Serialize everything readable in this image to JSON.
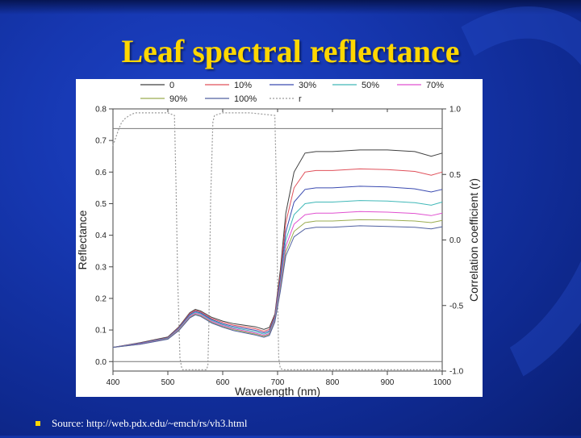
{
  "slide": {
    "title": "Leaf spectral reflectance",
    "source": "Source: http://web.pdx.edu/~emch/rs/vh3.html",
    "colors": {
      "title": "#ffd700",
      "background": "#1637b0",
      "bullet": "#ffd700"
    }
  },
  "chart_data": {
    "type": "line",
    "title": "",
    "xlabel": "Wavelength (nm)",
    "ylabel": "Reflectance",
    "y2label": "Correlation coefficient (r)",
    "xlim": [
      400,
      1000
    ],
    "ylim": [
      -0.03,
      0.8
    ],
    "y2lim": [
      -1.0,
      1.0
    ],
    "xticks": [
      400,
      500,
      600,
      700,
      800,
      900,
      1000
    ],
    "xtick_labels": [
      "400",
      "500",
      "600",
      "700",
      "800",
      "900",
      "1000"
    ],
    "yticks": [
      0.0,
      0.1,
      0.2,
      0.3,
      0.4,
      0.5,
      0.6,
      0.7,
      0.8
    ],
    "ytick_labels": [
      "0.0",
      "0.1",
      "0.2",
      "0.3",
      "0.4",
      "0.5",
      "0.6",
      "0.7",
      "0.8"
    ],
    "y2ticks": [
      -1.0,
      -0.5,
      0.0,
      0.5,
      1.0
    ],
    "y2tick_labels": [
      "-1.0",
      "-0.5",
      "0.0",
      "0.5",
      "1.0"
    ],
    "legend_position": "top",
    "grid": false,
    "x": [
      400,
      450,
      500,
      520,
      540,
      550,
      560,
      580,
      600,
      620,
      640,
      660,
      675,
      685,
      695,
      705,
      715,
      730,
      750,
      770,
      800,
      850,
      900,
      950,
      980,
      1000
    ],
    "series": [
      {
        "name": "0",
        "color": "#404040",
        "dash": "solid",
        "values": [
          0.045,
          0.06,
          0.078,
          0.11,
          0.155,
          0.165,
          0.16,
          0.14,
          0.128,
          0.12,
          0.115,
          0.11,
          0.102,
          0.108,
          0.15,
          0.29,
          0.47,
          0.6,
          0.66,
          0.665,
          0.665,
          0.67,
          0.67,
          0.665,
          0.65,
          0.66
        ]
      },
      {
        "name": "10%",
        "color": "#e0505a",
        "dash": "solid",
        "values": [
          0.045,
          0.059,
          0.076,
          0.108,
          0.152,
          0.162,
          0.157,
          0.136,
          0.124,
          0.115,
          0.11,
          0.104,
          0.096,
          0.102,
          0.145,
          0.275,
          0.44,
          0.55,
          0.6,
          0.605,
          0.605,
          0.61,
          0.608,
          0.602,
          0.59,
          0.6
        ]
      },
      {
        "name": "30%",
        "color": "#3a4ab0",
        "dash": "solid",
        "values": [
          0.045,
          0.058,
          0.075,
          0.106,
          0.149,
          0.159,
          0.154,
          0.133,
          0.12,
          0.111,
          0.105,
          0.099,
          0.091,
          0.097,
          0.14,
          0.262,
          0.41,
          0.505,
          0.545,
          0.55,
          0.55,
          0.555,
          0.553,
          0.547,
          0.537,
          0.545
        ]
      },
      {
        "name": "50%",
        "color": "#40b8b8",
        "dash": "solid",
        "values": [
          0.045,
          0.057,
          0.074,
          0.104,
          0.146,
          0.156,
          0.151,
          0.13,
          0.117,
          0.107,
          0.101,
          0.094,
          0.087,
          0.093,
          0.136,
          0.25,
          0.385,
          0.465,
          0.5,
          0.505,
          0.505,
          0.51,
          0.508,
          0.503,
          0.495,
          0.505
        ]
      },
      {
        "name": "70%",
        "color": "#e050d0",
        "dash": "solid",
        "values": [
          0.045,
          0.056,
          0.073,
          0.102,
          0.143,
          0.153,
          0.148,
          0.127,
          0.114,
          0.104,
          0.097,
          0.09,
          0.083,
          0.089,
          0.132,
          0.24,
          0.365,
          0.435,
          0.465,
          0.47,
          0.47,
          0.475,
          0.473,
          0.469,
          0.462,
          0.47
        ]
      },
      {
        "name": "90%",
        "color": "#9aac50",
        "dash": "solid",
        "values": [
          0.045,
          0.055,
          0.072,
          0.1,
          0.14,
          0.15,
          0.145,
          0.124,
          0.111,
          0.101,
          0.094,
          0.087,
          0.08,
          0.086,
          0.128,
          0.23,
          0.348,
          0.412,
          0.44,
          0.445,
          0.445,
          0.449,
          0.448,
          0.445,
          0.44,
          0.447
        ]
      },
      {
        "name": "100%",
        "color": "#5060a0",
        "dash": "solid",
        "values": [
          0.045,
          0.055,
          0.071,
          0.098,
          0.138,
          0.148,
          0.143,
          0.122,
          0.109,
          0.098,
          0.091,
          0.084,
          0.077,
          0.083,
          0.125,
          0.222,
          0.335,
          0.395,
          0.42,
          0.425,
          0.425,
          0.43,
          0.428,
          0.425,
          0.42,
          0.427
        ]
      }
    ],
    "correlation": {
      "name": "r",
      "color": "#9a9a9a",
      "dash": "dotted",
      "x": [
        400,
        405,
        410,
        415,
        420,
        430,
        440,
        480,
        500,
        512,
        515,
        518,
        522,
        525,
        527,
        530,
        570,
        573,
        575,
        578,
        582,
        585,
        600,
        650,
        695,
        698,
        700,
        702,
        705,
        710,
        800,
        1000
      ],
      "values": [
        0.72,
        0.78,
        0.84,
        0.89,
        0.92,
        0.95,
        0.97,
        0.97,
        0.97,
        0.95,
        0.4,
        -0.3,
        -0.9,
        -0.97,
        -0.99,
        -0.99,
        -0.99,
        -0.96,
        -0.6,
        0.3,
        0.9,
        0.95,
        0.97,
        0.97,
        0.95,
        0.4,
        -0.4,
        -0.9,
        -0.98,
        -0.99,
        -0.99,
        -0.99
      ]
    },
    "reference_line": {
      "r": 0.85
    }
  }
}
